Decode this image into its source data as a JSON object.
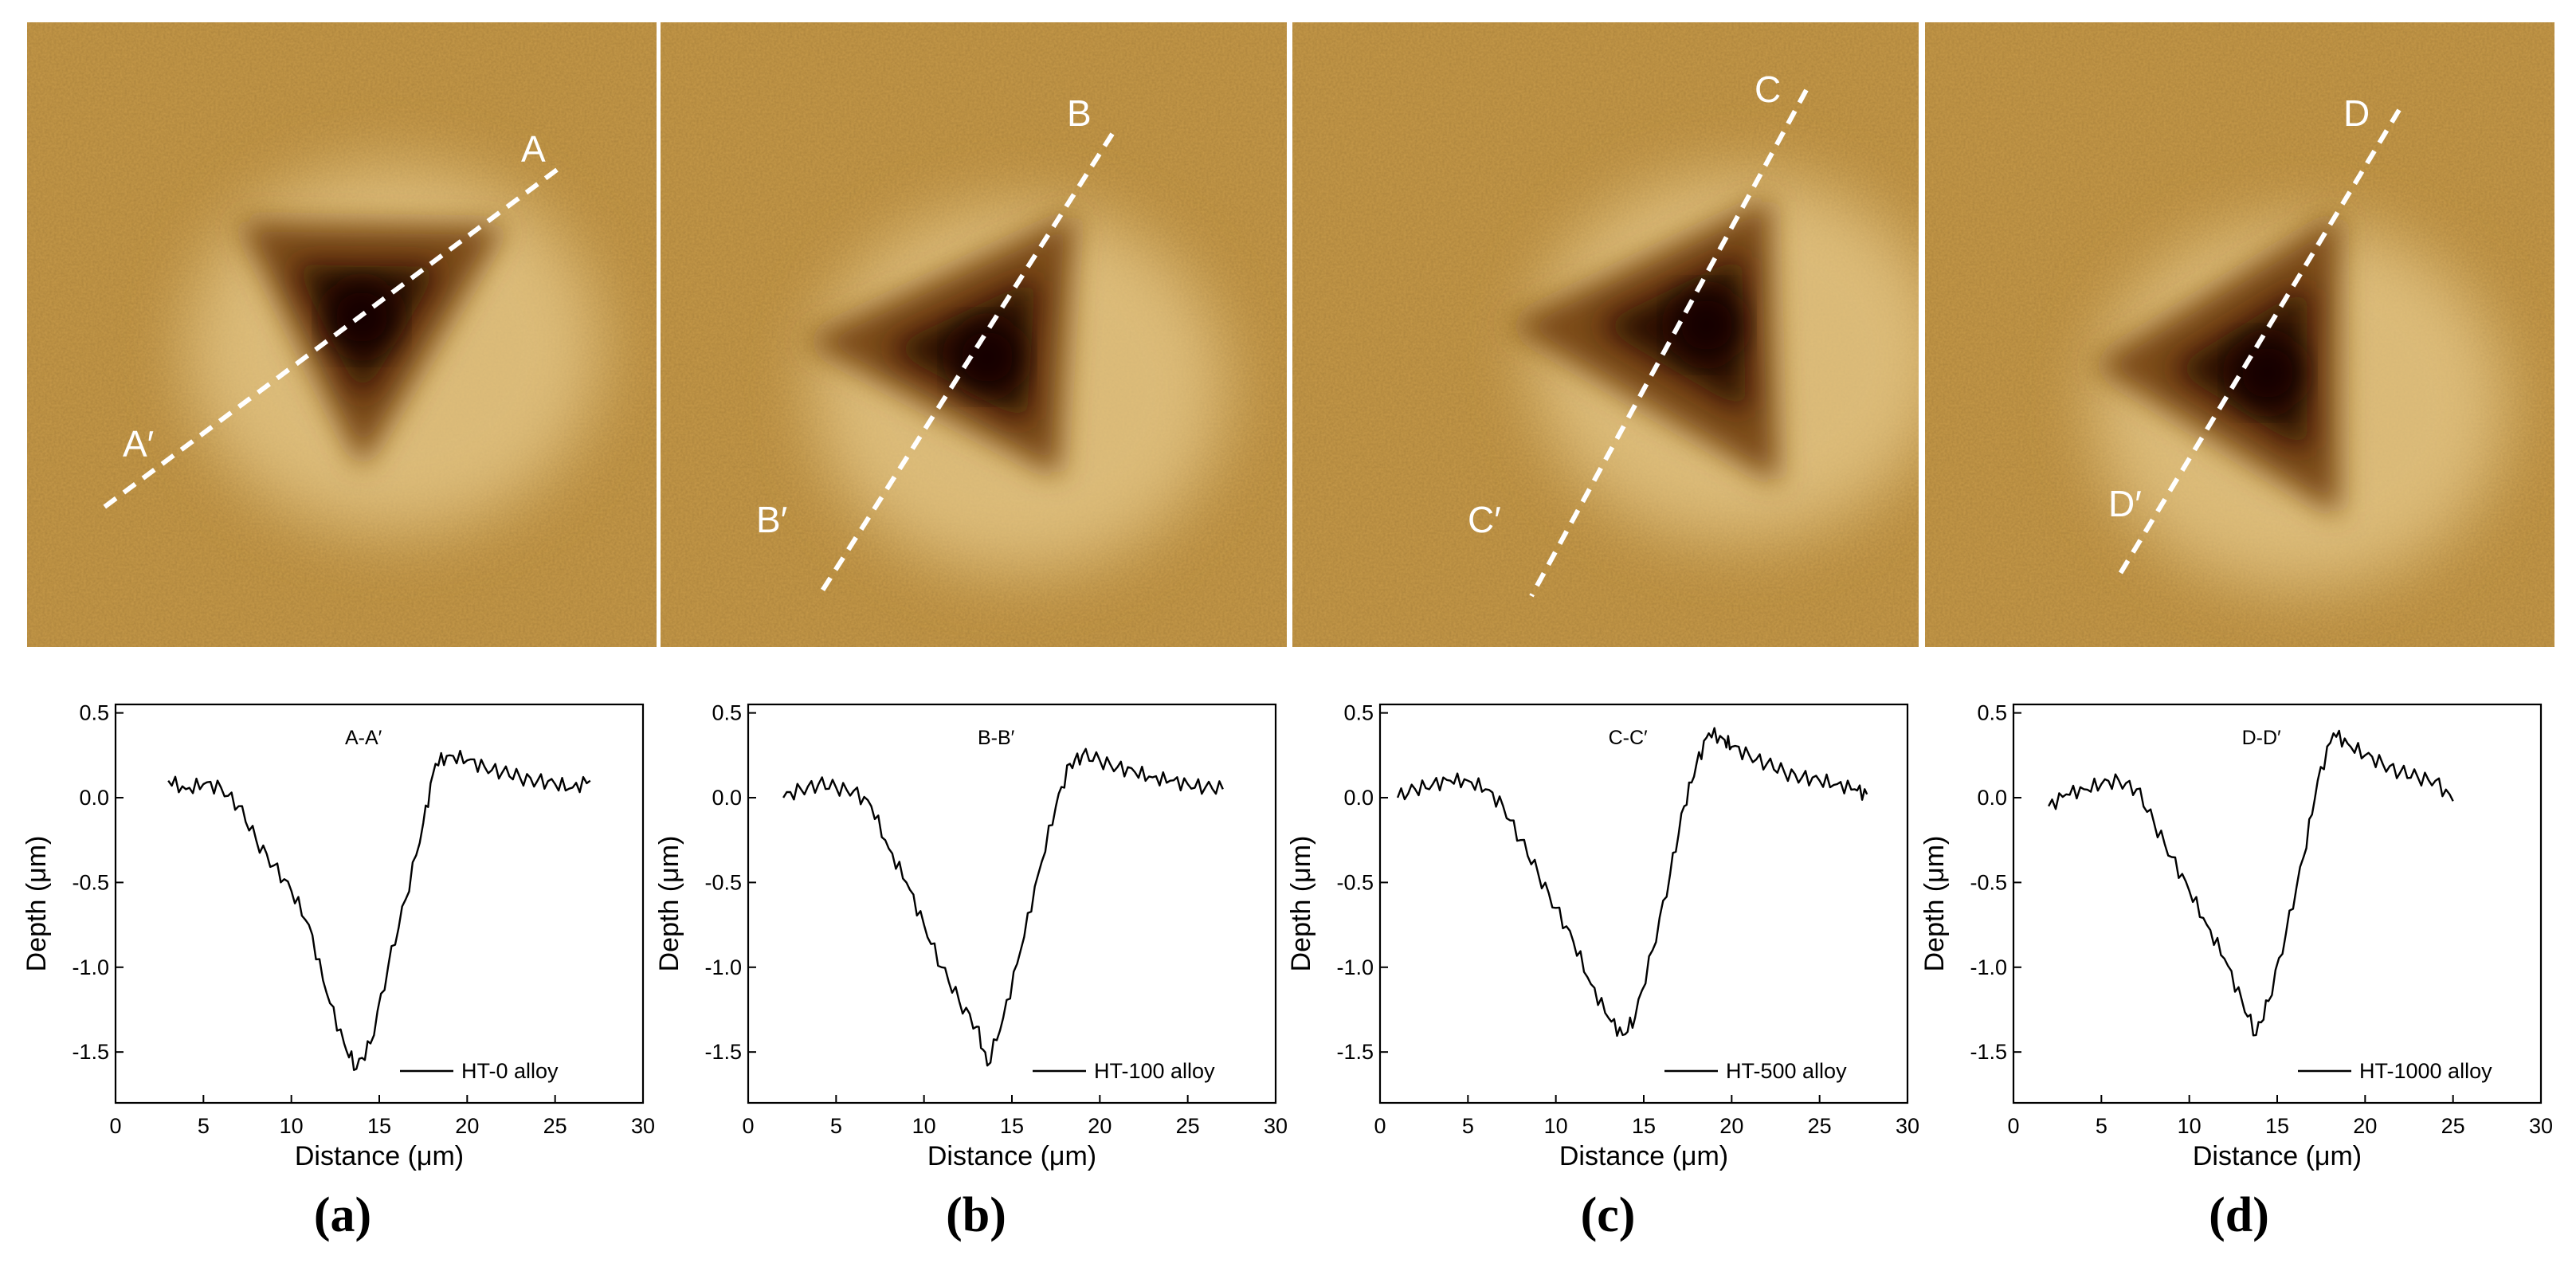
{
  "figure": {
    "panels": [
      {
        "id": "a",
        "letter": "(a)",
        "scan": {
          "line_start": "A",
          "line_end": "A′",
          "tip": [
            0.52,
            0.48
          ]
        },
        "profile_title": "A-A′",
        "legend": "HT-0 alloy"
      },
      {
        "id": "b",
        "letter": "(b)",
        "scan": {
          "line_start": "B",
          "line_end": "B′",
          "tip": [
            0.52,
            0.55
          ]
        },
        "profile_title": "B-B′",
        "legend": "HT-100 alloy"
      },
      {
        "id": "c",
        "letter": "(c)",
        "scan": {
          "line_start": "C",
          "line_end": "C′",
          "tip": [
            0.65,
            0.52
          ]
        },
        "profile_title": "C-C′",
        "legend": "HT-500 alloy"
      },
      {
        "id": "d",
        "letter": "(d)",
        "scan": {
          "line_start": "D",
          "line_end": "D′",
          "tip": [
            0.55,
            0.55
          ]
        },
        "profile_title": "D-D′",
        "legend": "HT-1000 alloy"
      }
    ]
  },
  "chart_data": [
    {
      "type": "line",
      "title": "A-A′",
      "xlabel": "Distance (μm)",
      "ylabel": "Depth (μm)",
      "xlim": [
        0,
        30
      ],
      "ylim": [
        -1.8,
        0.55
      ],
      "xticks": [
        "0",
        "5",
        "10",
        "15",
        "20",
        "25",
        "30"
      ],
      "yticks": [
        "-1.5",
        "-1.0",
        "-0.5",
        "0.0",
        "0.5"
      ],
      "series": [
        {
          "name": "HT-0 alloy",
          "x": [
            3,
            4,
            5,
            6,
            7,
            8,
            9,
            10,
            11,
            12,
            13,
            13.7,
            14.5,
            15.5,
            16.5,
            17.5,
            18.2,
            19,
            20,
            21,
            22,
            23,
            24,
            25,
            26,
            27
          ],
          "y": [
            0.1,
            0.05,
            0.08,
            0.06,
            -0.05,
            -0.25,
            -0.4,
            -0.55,
            -0.75,
            -1.15,
            -1.45,
            -1.6,
            -1.45,
            -1.0,
            -0.6,
            -0.15,
            0.2,
            0.25,
            0.22,
            0.18,
            0.15,
            0.12,
            0.1,
            0.08,
            0.06,
            0.1
          ]
        }
      ]
    },
    {
      "type": "line",
      "title": "B-B′",
      "xlabel": "Distance (μm)",
      "ylabel": "Depth (μm)",
      "xlim": [
        0,
        30
      ],
      "ylim": [
        -1.8,
        0.55
      ],
      "xticks": [
        "0",
        "5",
        "10",
        "15",
        "20",
        "25",
        "30"
      ],
      "yticks": [
        "-1.5",
        "-1.0",
        "-0.5",
        "0.0",
        "0.5"
      ],
      "series": [
        {
          "name": "HT-100 alloy",
          "x": [
            2,
            3,
            4,
            5,
            6,
            7,
            8,
            9,
            10,
            11,
            12,
            13,
            13.6,
            14.5,
            15.5,
            16.5,
            17.5,
            18.3,
            19,
            20,
            21,
            22,
            23,
            24,
            25,
            26,
            27
          ],
          "y": [
            0.0,
            0.05,
            0.08,
            0.06,
            0.04,
            -0.05,
            -0.3,
            -0.5,
            -0.75,
            -1.0,
            -1.2,
            -1.35,
            -1.58,
            -1.3,
            -0.9,
            -0.45,
            -0.05,
            0.2,
            0.25,
            0.22,
            0.18,
            0.15,
            0.12,
            0.1,
            0.08,
            0.06,
            0.05
          ]
        }
      ]
    },
    {
      "type": "line",
      "title": "C-C′",
      "xlabel": "Distance (μm)",
      "ylabel": "Depth (μm)",
      "xlim": [
        0,
        30
      ],
      "ylim": [
        -1.8,
        0.55
      ],
      "xticks": [
        "0",
        "5",
        "10",
        "15",
        "20",
        "25",
        "30"
      ],
      "yticks": [
        "-1.5",
        "-1.0",
        "-0.5",
        "0.0",
        "0.5"
      ],
      "series": [
        {
          "name": "HT-500 alloy",
          "x": [
            1,
            2,
            3,
            4,
            5,
            6,
            7,
            8,
            9,
            10,
            11,
            12,
            13,
            13.8,
            14.5,
            15.5,
            16.5,
            17.3,
            18,
            18.7,
            19.5,
            20,
            21,
            22,
            23,
            24,
            25,
            26,
            27,
            27.7
          ],
          "y": [
            0.0,
            0.05,
            0.08,
            0.1,
            0.1,
            0.05,
            -0.05,
            -0.25,
            -0.45,
            -0.65,
            -0.85,
            -1.1,
            -1.3,
            -1.4,
            -1.3,
            -0.9,
            -0.45,
            -0.05,
            0.2,
            0.38,
            0.35,
            0.3,
            0.25,
            0.2,
            0.15,
            0.12,
            0.1,
            0.08,
            0.05,
            0.02
          ]
        }
      ]
    },
    {
      "type": "line",
      "title": "D-D′",
      "xlabel": "Distance (μm)",
      "ylabel": "Depth (μm)",
      "xlim": [
        0,
        30
      ],
      "ylim": [
        -1.8,
        0.55
      ],
      "xticks": [
        "0",
        "5",
        "10",
        "15",
        "20",
        "25",
        "30"
      ],
      "yticks": [
        "-1.5",
        "-1.0",
        "-0.5",
        "0.0",
        "0.5"
      ],
      "series": [
        {
          "name": "HT-1000 alloy",
          "x": [
            2,
            3,
            4,
            5,
            6,
            7,
            8,
            9,
            10,
            11,
            12,
            13,
            13.8,
            14.5,
            15.5,
            16.5,
            17.3,
            18.2,
            19,
            20,
            21,
            22,
            23,
            24,
            25
          ],
          "y": [
            -0.05,
            0.02,
            0.05,
            0.08,
            0.1,
            0.05,
            -0.15,
            -0.35,
            -0.55,
            -0.75,
            -0.95,
            -1.2,
            -1.4,
            -1.2,
            -0.8,
            -0.35,
            0.1,
            0.38,
            0.32,
            0.25,
            0.2,
            0.15,
            0.12,
            0.1,
            -0.02
          ]
        }
      ]
    }
  ]
}
